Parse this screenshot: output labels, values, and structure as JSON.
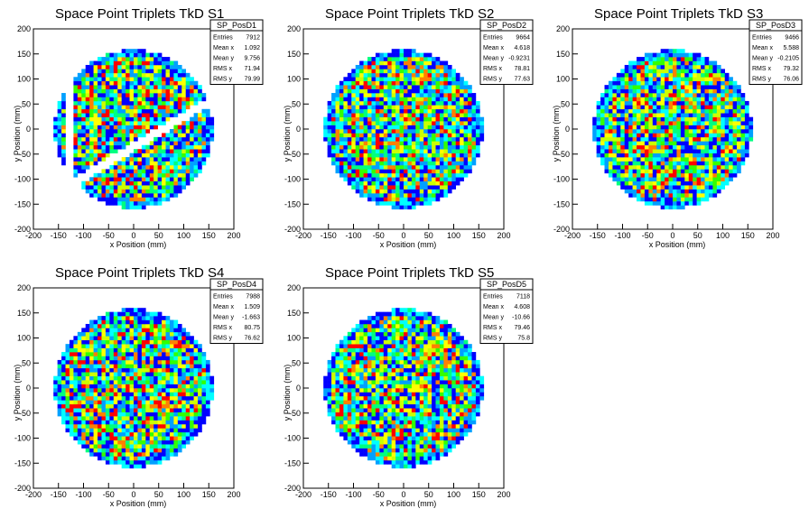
{
  "chart_data": [
    {
      "type": "heatmap",
      "histogram": "SP_PosD1",
      "title": "Space Point Triplets TkD S1",
      "xlabel": "x Position (mm)",
      "ylabel": "y Position (mm)",
      "xlim": [
        -200,
        200
      ],
      "ylim": [
        -200,
        200
      ],
      "x_ticks": [
        "-200",
        "-150",
        "-100",
        "-50",
        "0",
        "50",
        "100",
        "150",
        "200"
      ],
      "y_ticks": [
        "-200",
        "-150",
        "-100",
        "-50",
        "0",
        "50",
        "100",
        "150",
        "200"
      ],
      "stats": [
        {
          "label": "Entries",
          "value": "7912"
        },
        {
          "label": "Mean x",
          "value": "1.092"
        },
        {
          "label": "Mean y",
          "value": "9.756"
        },
        {
          "label": "RMS x",
          "value": "71.94"
        },
        {
          "label": "RMS y",
          "value": "79.99"
        }
      ],
      "footprint": {
        "shape": "disk",
        "center": [
          0,
          0
        ],
        "radius_mm": 158
      },
      "gaps": [
        {
          "description": "diagonal gap",
          "y_intercept_mm": -35,
          "slope": 0.6,
          "width_mm": 18
        },
        {
          "description": "vertical gap",
          "x_mm": -130,
          "width_mm": 15
        }
      ]
    },
    {
      "type": "heatmap",
      "histogram": "SP_PosD2",
      "title": "Space Point Triplets TkD S2",
      "xlabel": "x Position (mm)",
      "ylabel": "y Position (mm)",
      "xlim": [
        -200,
        200
      ],
      "ylim": [
        -200,
        200
      ],
      "x_ticks": [
        "-200",
        "-150",
        "-100",
        "-50",
        "0",
        "50",
        "100",
        "150",
        "200"
      ],
      "y_ticks": [
        "-200",
        "-150",
        "-100",
        "-50",
        "0",
        "50",
        "100",
        "150",
        "200"
      ],
      "stats": [
        {
          "label": "Entries",
          "value": "9664"
        },
        {
          "label": "Mean x",
          "value": "4.618"
        },
        {
          "label": "Mean y",
          "value": "-0.9231"
        },
        {
          "label": "RMS x",
          "value": "78.81"
        },
        {
          "label": "RMS y",
          "value": "77.63"
        }
      ],
      "footprint": {
        "shape": "disk",
        "center": [
          0,
          0
        ],
        "radius_mm": 158
      },
      "gaps": []
    },
    {
      "type": "heatmap",
      "histogram": "SP_PosD3",
      "title": "Space Point Triplets TkD S3",
      "xlabel": "x Position (mm)",
      "ylabel": "y Position (mm)",
      "xlim": [
        -200,
        200
      ],
      "ylim": [
        -200,
        200
      ],
      "x_ticks": [
        "-200",
        "-150",
        "-100",
        "-50",
        "0",
        "50",
        "100",
        "150",
        "200"
      ],
      "y_ticks": [
        "-200",
        "-150",
        "-100",
        "-50",
        "0",
        "50",
        "100",
        "150",
        "200"
      ],
      "stats": [
        {
          "label": "Entries",
          "value": "9466"
        },
        {
          "label": "Mean x",
          "value": "5.588"
        },
        {
          "label": "Mean y",
          "value": "-0.2105"
        },
        {
          "label": "RMS x",
          "value": "79.32"
        },
        {
          "label": "RMS y",
          "value": "76.06"
        }
      ],
      "footprint": {
        "shape": "disk",
        "center": [
          0,
          0
        ],
        "radius_mm": 158
      },
      "gaps": []
    },
    {
      "type": "heatmap",
      "histogram": "SP_PosD4",
      "title": "Space Point Triplets TkD S4",
      "xlabel": "x Position (mm)",
      "ylabel": "y Position (mm)",
      "xlim": [
        -200,
        200
      ],
      "ylim": [
        -200,
        200
      ],
      "x_ticks": [
        "-200",
        "-150",
        "-100",
        "-50",
        "0",
        "50",
        "100",
        "150",
        "200"
      ],
      "y_ticks": [
        "-200",
        "-150",
        "-100",
        "-50",
        "0",
        "50",
        "100",
        "150",
        "200"
      ],
      "stats": [
        {
          "label": "Entries",
          "value": "7988"
        },
        {
          "label": "Mean x",
          "value": "1.509"
        },
        {
          "label": "Mean y",
          "value": "-1.663"
        },
        {
          "label": "RMS x",
          "value": "80.75"
        },
        {
          "label": "RMS y",
          "value": "76.62"
        }
      ],
      "footprint": {
        "shape": "disk",
        "center": [
          0,
          0
        ],
        "radius_mm": 158
      },
      "gaps": []
    },
    {
      "type": "heatmap",
      "histogram": "SP_PosD5",
      "title": "Space Point Triplets TkD S5",
      "xlabel": "x Position (mm)",
      "ylabel": "y Position (mm)",
      "xlim": [
        -200,
        200
      ],
      "ylim": [
        -200,
        200
      ],
      "x_ticks": [
        "-200",
        "-150",
        "-100",
        "-50",
        "0",
        "50",
        "100",
        "150",
        "200"
      ],
      "y_ticks": [
        "-200",
        "-150",
        "-100",
        "-50",
        "0",
        "50",
        "100",
        "150",
        "200"
      ],
      "stats": [
        {
          "label": "Entries",
          "value": "7118"
        },
        {
          "label": "Mean x",
          "value": "4.608"
        },
        {
          "label": "Mean y",
          "value": "-10.66"
        },
        {
          "label": "RMS x",
          "value": "79.46"
        },
        {
          "label": "RMS y",
          "value": "75.8"
        }
      ],
      "footprint": {
        "shape": "disk",
        "center": [
          0,
          0
        ],
        "radius_mm": 158
      },
      "gaps": []
    }
  ],
  "colors": {
    "palette": [
      "#0000ff",
      "#00a0ff",
      "#00ffff",
      "#00ff80",
      "#33ff00",
      "#ccff00",
      "#ffff00",
      "#ff8000",
      "#ff0000"
    ],
    "frame": "#000000",
    "background": "#ffffff"
  }
}
